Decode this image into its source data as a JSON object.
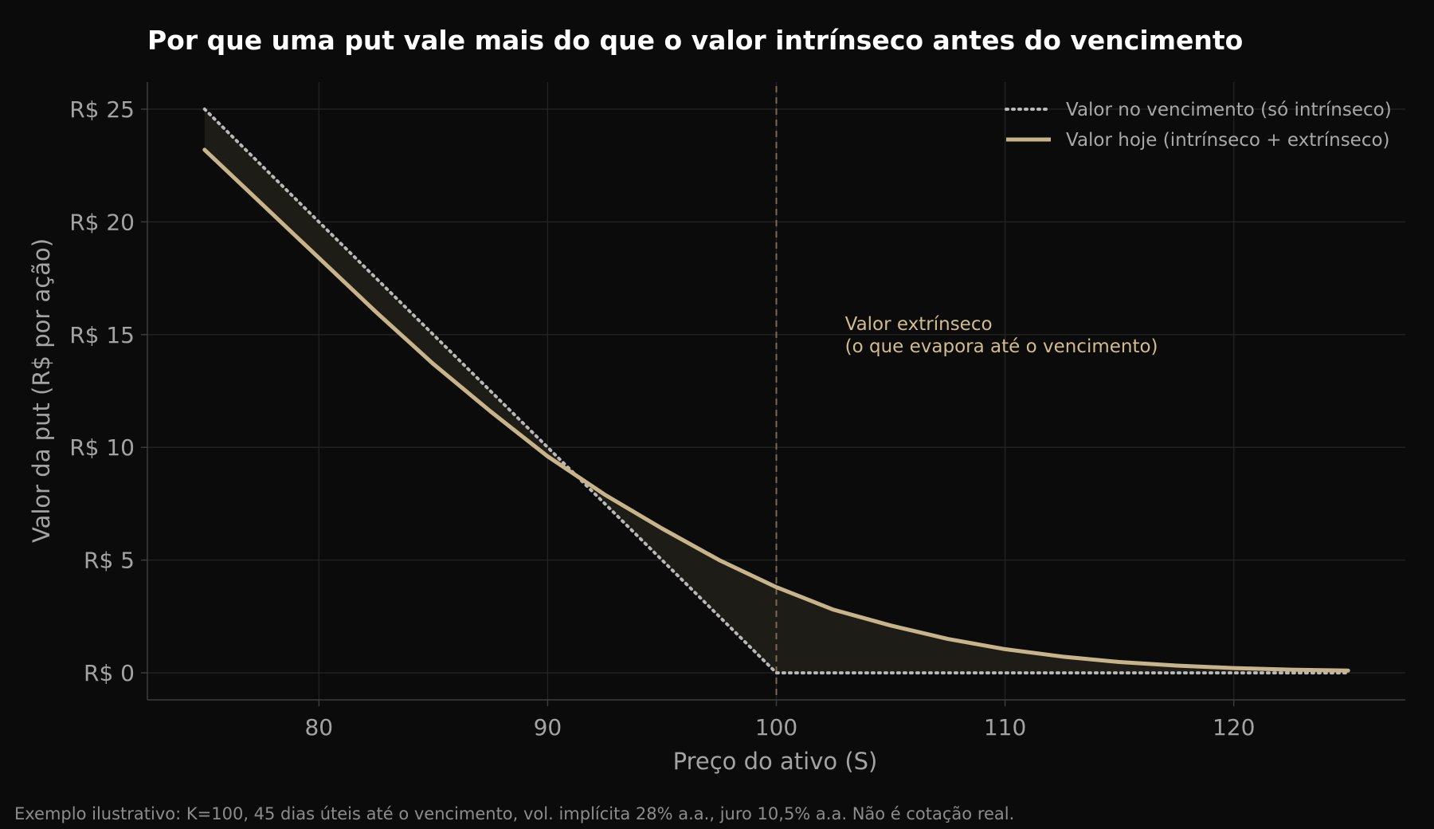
{
  "chart_data": {
    "type": "line",
    "title": "Por que uma put vale mais do que o valor intrínseco antes do vencimento",
    "xlabel": "Preço do ativo (S)",
    "ylabel": "Valor da put (R$ por ação)",
    "xlim": [
      72.5,
      127.5
    ],
    "ylim": [
      -1.2,
      26.2
    ],
    "x_ticks": [
      80,
      90,
      100,
      110,
      120
    ],
    "x_tick_labels": [
      "80",
      "90",
      "100",
      "110",
      "120"
    ],
    "y_ticks": [
      0,
      5,
      10,
      15,
      20,
      25
    ],
    "y_tick_labels": [
      "R$ 0",
      "R$ 5",
      "R$ 10",
      "R$ 15",
      "R$ 20",
      "R$ 25"
    ],
    "grid": true,
    "legend_position": "top-right",
    "strike": 100,
    "x": [
      75,
      77.5,
      80,
      82.5,
      85,
      87.5,
      90,
      92.5,
      95,
      97.5,
      100,
      102.5,
      105,
      107.5,
      110,
      112.5,
      115,
      117.5,
      120,
      122.5,
      125
    ],
    "series": [
      {
        "name": "Valor no vencimento (só intrínseco)",
        "style": "dotted",
        "color": "#b8b8b8",
        "values": [
          25,
          22.5,
          20,
          17.5,
          15,
          12.5,
          10,
          7.5,
          5,
          2.5,
          0,
          0,
          0,
          0,
          0,
          0,
          0,
          0,
          0,
          0,
          0
        ]
      },
      {
        "name": "Valor hoje (intrínseco + extrínseco)",
        "style": "solid",
        "color": "#c8b48a",
        "values": [
          23.2,
          20.8,
          18.4,
          16.0,
          13.7,
          11.6,
          9.6,
          7.9,
          6.4,
          5.0,
          3.8,
          2.8,
          2.1,
          1.5,
          1.05,
          0.72,
          0.48,
          0.32,
          0.21,
          0.14,
          0.1
        ]
      }
    ],
    "annotation": [
      "Valor extrínseco",
      "(o que evapora até o vencimento)"
    ],
    "annotation_anchor": {
      "x": 103,
      "y": 15.2
    },
    "footnote": "Exemplo ilustrativo: K=100, 45 dias úteis até o vencimento, vol. implícita 28% a.a., juro 10,5% a.a. Não é cotação real.",
    "colors": {
      "background": "#0b0b0b",
      "grid": "#242424",
      "axis": "#3c3c3c",
      "strike_line": "#7a6a4e",
      "fill": "#1e1c16",
      "annotation": "#d2bc8e"
    }
  }
}
